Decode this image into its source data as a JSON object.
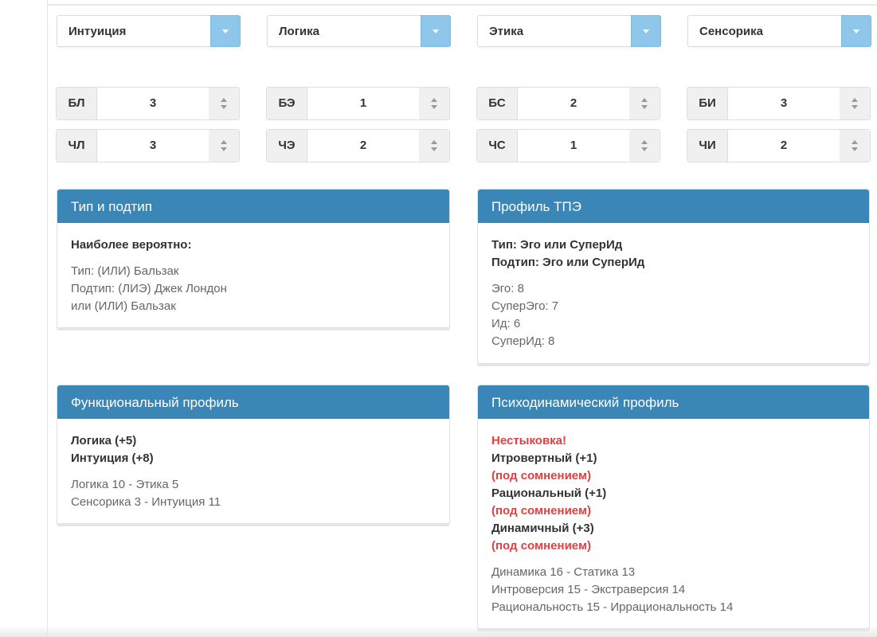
{
  "selects": [
    "Интуиция",
    "Логика",
    "Этика",
    "Сенсорика"
  ],
  "spinners": [
    {
      "label": "БЛ",
      "value": "3"
    },
    {
      "label": "БЭ",
      "value": "1"
    },
    {
      "label": "БС",
      "value": "2"
    },
    {
      "label": "БИ",
      "value": "3"
    },
    {
      "label": "ЧЛ",
      "value": "3"
    },
    {
      "label": "ЧЭ",
      "value": "2"
    },
    {
      "label": "ЧС",
      "value": "1"
    },
    {
      "label": "ЧИ",
      "value": "2"
    }
  ],
  "type_panel": {
    "title": "Тип и подтип",
    "heading": "Наиболее вероятно:",
    "lines": [
      "Тип: (ИЛИ) Бальзак",
      "Подтип: (ЛИЭ) Джек Лондон",
      "или (ИЛИ) Бальзак"
    ]
  },
  "tpe_panel": {
    "title": "Профиль ТПЭ",
    "bold": [
      "Тип: Эго или СуперИд",
      "Подтип: Эго или СуперИд"
    ],
    "lines": [
      "Эго: 8",
      "СуперЭго: 7",
      "Ид: 6",
      "СуперИд: 8"
    ]
  },
  "func_panel": {
    "title": "Функциональный профиль",
    "bold": [
      "Логика (+5)",
      "Интуиция (+8)"
    ],
    "lines": [
      "Логика 10 - Этика 5",
      "Сенсорика 3 - Интуиция 11"
    ]
  },
  "psycho_panel": {
    "title": "Психодинамический профиль",
    "warning": "Нестыковка!",
    "items": [
      {
        "text": "Итровертный (+1)",
        "note": "(под сомнением)"
      },
      {
        "text": "Рациональный (+1)",
        "note": "(под сомнением)"
      },
      {
        "text": "Динамичный (+3)",
        "note": "(под сомнением)"
      }
    ],
    "lines": [
      "Динамика 16 - Статика 13",
      "Интроверсия 15 - Экстраверсия 14",
      "Рациональность 15 - Иррациональность 14"
    ]
  },
  "colors": {
    "header": "#3a86b6",
    "select_button": "#8ec7ea",
    "warning": "#e04040"
  }
}
